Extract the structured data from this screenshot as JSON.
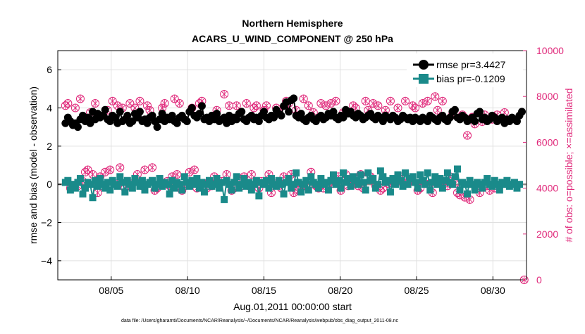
{
  "chart_data": {
    "type": "line",
    "title_line1": "Northern Hemisphere",
    "title_line2": "ACARS_U_WIND_COMPONENT @ 250 hPa",
    "xlabel": "Aug.01,2011 00:00:00 start",
    "ylabel_left": "rmse and bias (model - observation)",
    "ylabel_right": "# of obs: o=possible; ×=assimilated",
    "footnote": "data file: /Users/gharamti/Documents/NCAR/Reanalysis/~/Documents/NCAR/Reanalysis/webpub/obs_diag_output_2011-08.nc",
    "x_unit": "days since Aug.01,2011 00:00",
    "xlim": [
      0.5,
      31.2
    ],
    "ylim_left": [
      -5,
      7
    ],
    "ylim_right": [
      0,
      10000
    ],
    "left_ticks": [
      -4,
      -2,
      0,
      2,
      4,
      6
    ],
    "right_ticks": [
      0,
      2000,
      4000,
      6000,
      8000,
      10000
    ],
    "x_ticks": [
      {
        "x": 4,
        "label": "08/05"
      },
      {
        "x": 9,
        "label": "08/10"
      },
      {
        "x": 14,
        "label": "08/15"
      },
      {
        "x": 19,
        "label": "08/20"
      },
      {
        "x": 24,
        "label": "08/25"
      },
      {
        "x": 29,
        "label": "08/30"
      }
    ],
    "grid": true,
    "legend_position": "top-right",
    "colors": {
      "rmse": "#000000",
      "bias": "#1a8a8a",
      "obs": "#e0287a",
      "zero": "#888888"
    },
    "series": [
      {
        "name": "rmse pr=3.4427",
        "axis": "left",
        "values": [
          3.2,
          3.5,
          3.3,
          3.1,
          3.2,
          3.0,
          3.4,
          3.6,
          3.3,
          3.5,
          3.2,
          3.8,
          3.4,
          3.7,
          3.5,
          3.6,
          3.9,
          3.4,
          3.3,
          3.6,
          3.5,
          3.2,
          3.8,
          3.3,
          3.4,
          3.6,
          3.2,
          3.3,
          3.7,
          3.5,
          3.8,
          3.3,
          3.4,
          3.2,
          3.5,
          3.6,
          3.3,
          3.0,
          3.4,
          3.7,
          3.3,
          3.5,
          3.4,
          3.6,
          3.3,
          3.2,
          3.5,
          3.6,
          3.4,
          3.3,
          3.8,
          4.0,
          3.6,
          3.5,
          3.7,
          4.1,
          3.4,
          3.5,
          3.3,
          3.6,
          3.4,
          3.7,
          3.3,
          3.4,
          3.5,
          3.2,
          3.6,
          3.3,
          3.5,
          3.4,
          3.7,
          3.8,
          3.4,
          3.3,
          3.5,
          3.6,
          3.4,
          3.5,
          3.3,
          3.6,
          3.8,
          3.5,
          3.4,
          3.6,
          3.5,
          3.9,
          3.7,
          3.6,
          4.1,
          4.3,
          3.8,
          4.4,
          4.5,
          3.6,
          3.5,
          3.7,
          3.4,
          3.3,
          3.5,
          3.6,
          3.4,
          3.3,
          3.5,
          3.6,
          3.4,
          3.5,
          3.7,
          3.6,
          3.8,
          3.5,
          3.4,
          3.6,
          3.5,
          3.9,
          3.7,
          3.8,
          3.6,
          3.5,
          3.7,
          3.6,
          3.4,
          3.5,
          3.6,
          3.7,
          3.5,
          3.4,
          3.6,
          3.5,
          3.3,
          3.6,
          3.5,
          3.4,
          3.6,
          3.5,
          3.3,
          3.4,
          3.6,
          3.5,
          3.4,
          3.5,
          3.3,
          3.5,
          3.4,
          3.3,
          3.5,
          3.4,
          3.3,
          3.6,
          3.5,
          3.4,
          3.3,
          3.5,
          3.6,
          3.4,
          3.3,
          3.5,
          3.8,
          3.9,
          3.5,
          3.4,
          3.6,
          3.5,
          3.3,
          3.4,
          3.5,
          3.3,
          3.7,
          3.8,
          3.4,
          3.5,
          3.3,
          3.4,
          3.6,
          3.5,
          3.3,
          3.4,
          3.5,
          3.2,
          3.4,
          3.3,
          3.5,
          3.4,
          3.3,
          3.6,
          3.8
        ]
      },
      {
        "name": "bias pr=-0.1209",
        "axis": "left",
        "values": [
          0.1,
          0.2,
          -0.3,
          0.0,
          -0.2,
          0.1,
          0.3,
          -0.5,
          -0.2,
          0.1,
          0.0,
          -0.7,
          0.2,
          -0.1,
          0.3,
          0.0,
          -0.2,
          0.1,
          -0.3,
          0.2,
          0.0,
          -0.1,
          0.4,
          0.1,
          -0.4,
          0.2,
          0.0,
          -0.2,
          0.3,
          0.1,
          -0.1,
          0.2,
          -0.3,
          0.0,
          0.1,
          0.2,
          -0.2,
          0.0,
          0.3,
          -0.1,
          0.1,
          0.0,
          -0.5,
          0.2,
          -0.2,
          0.1,
          0.0,
          -0.3,
          0.4,
          0.1,
          -0.1,
          0.2,
          0.0,
          0.3,
          -0.2,
          0.1,
          -0.4,
          0.0,
          0.2,
          -0.1,
          0.0,
          0.3,
          -0.2,
          0.1,
          -0.8,
          0.2,
          0.0,
          -0.3,
          0.1,
          0.4,
          -0.2,
          0.0,
          0.3,
          -0.1,
          0.1,
          -0.3,
          0.0,
          0.2,
          -0.6,
          0.1,
          0.0,
          0.2,
          -0.2,
          0.3,
          0.0,
          -0.1,
          0.2,
          0.0,
          -0.5,
          0.1,
          0.3,
          -0.2,
          0.0,
          0.6,
          0.1,
          -0.4,
          0.0,
          0.2,
          -0.3,
          0.4,
          0.1,
          0.0,
          -0.2,
          0.3,
          0.0,
          0.1,
          -0.3,
          0.2,
          0.5,
          0.0,
          0.2,
          -0.2,
          0.6,
          0.1,
          0.3,
          -0.1,
          0.4,
          0.2,
          0.0,
          0.5,
          0.1,
          -0.3,
          0.6,
          0.2,
          0.3,
          -0.2,
          0.0,
          0.7,
          0.4,
          0.1,
          0.2,
          -0.4,
          0.3,
          0.0,
          0.5,
          0.2,
          -0.1,
          0.6,
          0.0,
          0.3,
          0.4,
          0.1,
          -0.2,
          0.5,
          0.2,
          0.0,
          0.6,
          -0.3,
          0.1,
          0.4,
          0.0,
          0.3,
          -0.2,
          0.2,
          0.6,
          0.1,
          0.0,
          0.4,
          0.8,
          -0.3,
          0.1,
          0.0,
          -0.5,
          0.2,
          0.0,
          -0.3,
          0.1,
          0.0,
          -0.2,
          0.1,
          0.3,
          0.0,
          -0.1,
          0.2,
          0.0,
          -0.3,
          0.1,
          0.0,
          0.2,
          -0.1,
          0.0,
          0.1,
          -0.2,
          0.0
        ]
      },
      {
        "name": "obs possible",
        "axis": "right",
        "values": [
          7600,
          7700,
          4000,
          4100,
          7500,
          4100,
          7900,
          4300,
          4700,
          4800,
          7300,
          4600,
          7700,
          3800,
          4500,
          4100,
          4700,
          7400,
          4800,
          7800,
          4200,
          7600,
          4900,
          7500,
          4000,
          4100,
          7700,
          4200,
          7500,
          4600,
          7800,
          4100,
          4800,
          7600,
          7400,
          4900,
          3900,
          4000,
          4200,
          7500,
          7700,
          4300,
          4100,
          4500,
          7900,
          4600,
          7700,
          3900,
          4100,
          4200,
          4700,
          7500,
          4800,
          4000,
          7700,
          7800,
          4200,
          4000,
          4300,
          4100,
          4500,
          7400,
          4200,
          4300,
          8100,
          4600,
          7600,
          3900,
          4000,
          7600,
          4200,
          4100,
          4500,
          7700,
          4100,
          4600,
          7500,
          7600,
          4000,
          4300,
          7400,
          7600,
          4600,
          3800,
          4200,
          7500,
          7300,
          4000,
          4500,
          7800,
          7700,
          4600,
          3800,
          7400,
          3900,
          4000,
          7900,
          4100,
          7600,
          4700,
          7300,
          4100,
          4000,
          7700,
          4000,
          7600,
          4200,
          7700,
          4200,
          7800,
          4500,
          3900,
          7300,
          4600,
          4100,
          4200,
          7600,
          7500,
          4100,
          4600,
          4000,
          7800,
          7400,
          4500,
          7700,
          4100,
          7600,
          3900,
          4000,
          7400,
          4200,
          7800,
          4300,
          4400,
          7500,
          4300,
          4500,
          7800,
          4200,
          4400,
          7600,
          7500,
          3900,
          4000,
          7700,
          4200,
          7800,
          4200,
          3800,
          8000,
          7400,
          4300,
          7800,
          4300,
          4100,
          4500,
          7200,
          4200,
          3800,
          3700,
          7200,
          3600,
          6300,
          3500,
          7100,
          6800,
          4000,
          3800,
          6900,
          7200,
          4100,
          3900,
          7000,
          4000,
          7200,
          4100,
          4200,
          7300
        ]
      }
    ],
    "extra_points": [
      {
        "x": 31.05,
        "value": 0
      }
    ]
  }
}
